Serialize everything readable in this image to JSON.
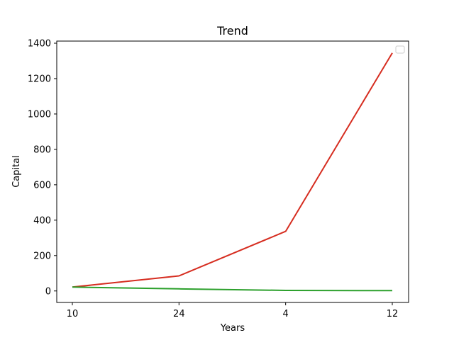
{
  "chart_data": {
    "type": "line",
    "title": "Trend",
    "xlabel": "Years",
    "ylabel": "Capital",
    "categories": [
      "10",
      "24",
      "4",
      "12"
    ],
    "series": [
      {
        "values": [
          22,
          85,
          337,
          1345
        ],
        "color": "#d62d20"
      },
      {
        "values": [
          22,
          12,
          3,
          2
        ],
        "color": "#2ca02c"
      }
    ],
    "yticks": [
      0,
      200,
      400,
      600,
      800,
      1000,
      1200,
      1400
    ],
    "ylim": [
      -65,
      1412
    ],
    "grid": false,
    "legend": {
      "placement": "top-right",
      "entries": []
    }
  }
}
